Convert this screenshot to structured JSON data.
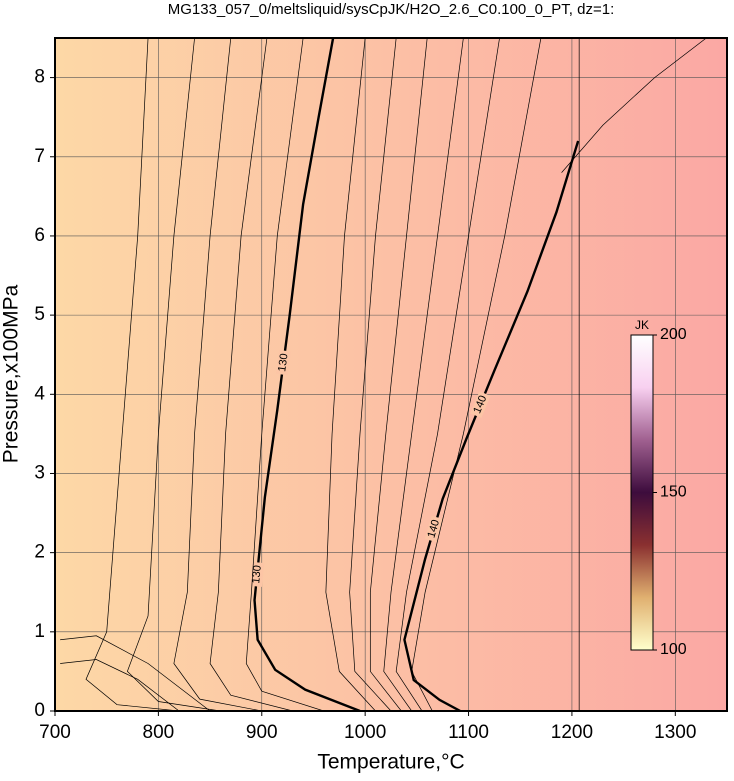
{
  "chart_data": {
    "type": "contour",
    "title": "MG133_057_0/meltsliquid/sysCpJK/H2O_2.6_C0.100_0_PT, dz=1:",
    "x_label": "Temperature,°C",
    "y_label": "Pressure,x100MPa",
    "xlim": [
      700,
      1350
    ],
    "ylim": [
      0,
      8.5
    ],
    "xticks": [
      700,
      800,
      900,
      1000,
      1100,
      1200,
      1300
    ],
    "yticks": [
      0,
      1,
      2,
      3,
      4,
      5,
      6,
      7,
      8
    ],
    "grid": true,
    "background_colors": [
      "#fdd8a6",
      "#fba8a4"
    ],
    "contours": [
      {
        "level": 130,
        "x": [
          969,
          955,
          940,
          927,
          915,
          903,
          898,
          893,
          896,
          913,
          942,
          995
        ],
        "y": [
          8.5,
          7.5,
          6.4,
          5.0,
          3.8,
          2.7,
          2.05,
          1.4,
          0.9,
          0.52,
          0.27,
          0
        ]
      },
      {
        "level": 140,
        "x": [
          1206,
          1185,
          1157,
          1125,
          1098,
          1075,
          1058,
          1038,
          1047,
          1072,
          1092
        ],
        "y": [
          7.2,
          6.3,
          5.3,
          4.3,
          3.44,
          2.68,
          1.92,
          0.9,
          0.39,
          0.14,
          0
        ]
      },
      {
        "x": [
          1000,
          980,
          968,
          962,
          975,
          1010
        ],
        "y": [
          8.5,
          6.0,
          3.5,
          1.5,
          0.5,
          0
        ]
      },
      {
        "x": [
          1030,
          1010,
          995,
          985,
          990,
          1025
        ],
        "y": [
          8.5,
          6.0,
          3.5,
          1.5,
          0.5,
          0
        ]
      },
      {
        "x": [
          1060,
          1040,
          1020,
          1005,
          1005,
          1035
        ],
        "y": [
          8.5,
          6.0,
          3.5,
          1.5,
          0.5,
          0
        ]
      },
      {
        "x": [
          1095,
          1070,
          1045,
          1025,
          1018,
          1045
        ],
        "y": [
          8.5,
          6.0,
          3.5,
          1.5,
          0.5,
          0
        ]
      },
      {
        "x": [
          1130,
          1100,
          1070,
          1040,
          1030,
          1055
        ],
        "y": [
          8.5,
          6.0,
          3.5,
          1.5,
          0.5,
          0
        ]
      },
      {
        "x": [
          1170,
          1135,
          1095,
          1058,
          1045,
          1065
        ],
        "y": [
          8.5,
          6.0,
          3.5,
          1.5,
          0.5,
          0
        ]
      },
      {
        "x": [
          940,
          915,
          900,
          890,
          885,
          900,
          960
        ],
        "y": [
          8.5,
          6.0,
          3.5,
          1.5,
          0.6,
          0.25,
          0
        ]
      },
      {
        "x": [
          905,
          880,
          865,
          858,
          850,
          870,
          930
        ],
        "y": [
          8.5,
          6.0,
          3.5,
          1.5,
          0.6,
          0.2,
          0
        ]
      },
      {
        "x": [
          870,
          850,
          835,
          828,
          815,
          840,
          900
        ],
        "y": [
          8.5,
          6.0,
          3.5,
          1.5,
          0.6,
          0.15,
          0
        ]
      },
      {
        "x": [
          835,
          815,
          800,
          790,
          770,
          800,
          860
        ],
        "y": [
          8.5,
          6.0,
          3.5,
          1.2,
          0.5,
          0.12,
          0
        ]
      },
      {
        "x": [
          790,
          780,
          765,
          750,
          730,
          760,
          820
        ],
        "y": [
          8.5,
          6.0,
          3.5,
          1.0,
          0.4,
          0.08,
          0
        ]
      },
      {
        "x": [
          705,
          740,
          790,
          850
        ],
        "y": [
          0.9,
          0.95,
          0.6,
          0
        ]
      },
      {
        "x": [
          705,
          740,
          780,
          820
        ],
        "y": [
          0.6,
          0.65,
          0.4,
          0
        ]
      },
      {
        "x": [
          1207,
          1207
        ],
        "y": [
          0,
          8.5
        ]
      },
      {
        "x": [
          1190,
          1230,
          1280,
          1330
        ],
        "y": [
          6.8,
          7.4,
          8.0,
          8.5
        ]
      }
    ],
    "colorbar": {
      "label": "JK",
      "clim": [
        100,
        200
      ],
      "ticks": [
        100,
        150,
        200
      ],
      "colors": [
        "#ffffcc",
        "#e0b070",
        "#8a3030",
        "#3d0c3d",
        "#a06090",
        "#f8d0f0",
        "#ffffff"
      ]
    }
  }
}
